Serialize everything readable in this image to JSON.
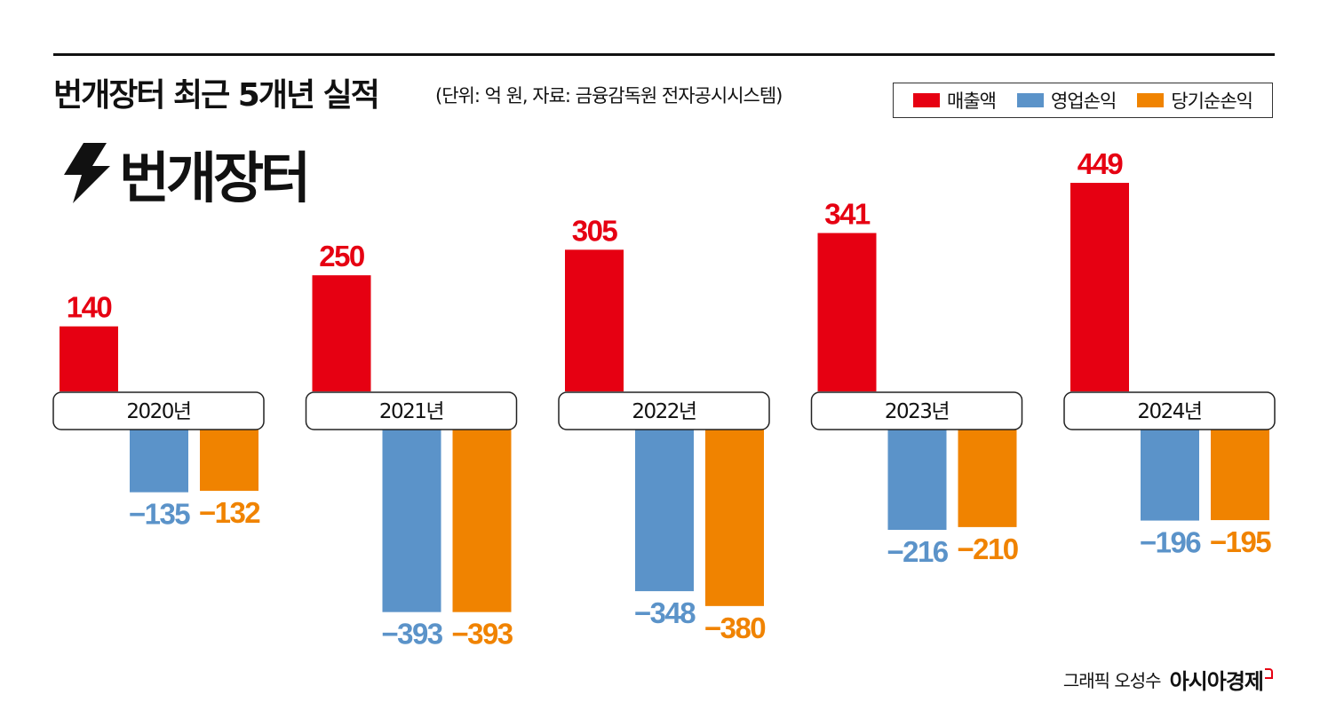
{
  "header": {
    "title": "번개장터 최근 5개년 실적",
    "subtitle": "(단위: 억 원, 자료: 금융감독원 전자공시시스템)"
  },
  "brand": {
    "icon": "lightning-bolt-icon",
    "name": "번개장터"
  },
  "legend": {
    "placement": "top-right",
    "items": [
      {
        "label": "매출액",
        "color": "#e60012"
      },
      {
        "label": "영업손익",
        "color": "#5b93c9"
      },
      {
        "label": "당기순손익",
        "color": "#f08300"
      }
    ]
  },
  "chart_data": {
    "type": "bar",
    "categories": [
      "2020년",
      "2021년",
      "2022년",
      "2023년",
      "2024년"
    ],
    "series": [
      {
        "name": "매출액",
        "color": "#e60012",
        "values": [
          140,
          250,
          305,
          341,
          449
        ]
      },
      {
        "name": "영업손익",
        "color": "#5b93c9",
        "values": [
          -135,
          -393,
          -348,
          -216,
          -196
        ]
      },
      {
        "name": "당기순손익",
        "color": "#f08300",
        "values": [
          -132,
          -393,
          -380,
          -210,
          -195
        ]
      }
    ],
    "value_labels": {
      "매출액": [
        "140",
        "250",
        "305",
        "341",
        "449"
      ],
      "영업손익": [
        "−135",
        "−393",
        "−348",
        "−216",
        "−196"
      ],
      "당기순손익": [
        "−132",
        "−393",
        "−380",
        "−210",
        "−195"
      ]
    },
    "grid": false
  },
  "footer": {
    "credit": "그래픽 오성수",
    "logo": "아시아경제"
  }
}
